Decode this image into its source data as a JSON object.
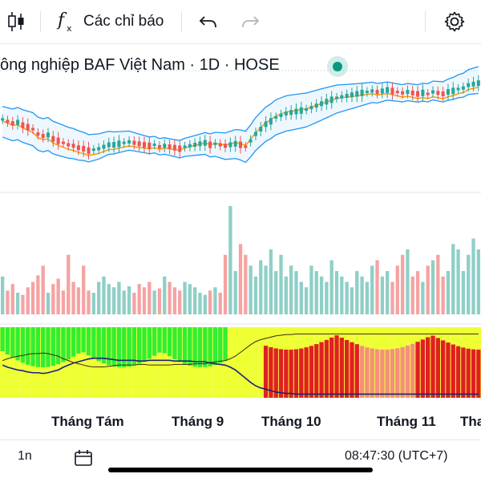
{
  "toolbar": {
    "candles_icon": "candlestick-icon",
    "indicators_label": "Các chỉ báo",
    "indicators_icon": "function-fx-icon",
    "undo_icon": "undo-arrow-icon",
    "redo_icon": "redo-arrow-icon",
    "settings_icon": "gear-icon"
  },
  "legend": {
    "text": "ông nghiệp BAF Việt Nam · 1D · HOSE"
  },
  "x_axis": {
    "labels": [
      "Tháng Tám",
      "Tháng 9",
      "Tháng 10",
      "Tháng 11",
      "Tha"
    ]
  },
  "bottom_bar": {
    "range_label": "1n",
    "time_text": "08:47:30 (UTC+7)",
    "calendar_icon": "calendar-icon"
  },
  "colors": {
    "up": "#26a69a",
    "down": "#ef5350",
    "bollinger": "#2196f3",
    "ma": "#ff9800",
    "volume_up": "#8fcfc7",
    "volume_down": "#f5a3a3",
    "osc_green": "#33ee33",
    "osc_yellow": "#eeff33",
    "osc_red": "#e02020",
    "osc_salmon": "#f5907a",
    "osc_line": "#1a237e"
  },
  "chart_data": {
    "type": "candlestick",
    "symbol_partial": "BAF",
    "interval": "1D",
    "exchange": "HOSE",
    "months": [
      "Tháng Tám",
      "Tháng 9",
      "Tháng 10",
      "Tháng 11"
    ],
    "price_trend": [
      0.4,
      0.42,
      0.44,
      0.43,
      0.46,
      0.48,
      0.5,
      0.55,
      0.57,
      0.56,
      0.6,
      0.62,
      0.64,
      0.66,
      0.67,
      0.69,
      0.7,
      0.72,
      0.71,
      0.7,
      0.68,
      0.66,
      0.66,
      0.65,
      0.64,
      0.63,
      0.64,
      0.65,
      0.66,
      0.67,
      0.66,
      0.68,
      0.67,
      0.68,
      0.69,
      0.7,
      0.68,
      0.67,
      0.66,
      0.65,
      0.64,
      0.66,
      0.65,
      0.66,
      0.67,
      0.66,
      0.65,
      0.66,
      0.68,
      0.62,
      0.55,
      0.5,
      0.45,
      0.42,
      0.38,
      0.36,
      0.34,
      0.33,
      0.32,
      0.31,
      0.3,
      0.28,
      0.26,
      0.24,
      0.22,
      0.2,
      0.18,
      0.17,
      0.16,
      0.15,
      0.14,
      0.13,
      0.12,
      0.11,
      0.12,
      0.11,
      0.1,
      0.11,
      0.12,
      0.13,
      0.12,
      0.13,
      0.14,
      0.13,
      0.14,
      0.12,
      0.13,
      0.14,
      0.12,
      0.11,
      0.09,
      0.08,
      0.05,
      0.04,
      0.03
    ],
    "volume": [
      0.35,
      0.22,
      0.28,
      0.2,
      0.18,
      0.25,
      0.3,
      0.36,
      0.45,
      0.2,
      0.28,
      0.33,
      0.22,
      0.55,
      0.3,
      0.25,
      0.45,
      0.22,
      0.2,
      0.3,
      0.35,
      0.28,
      0.25,
      0.3,
      0.22,
      0.26,
      0.2,
      0.28,
      0.25,
      0.3,
      0.22,
      0.24,
      0.35,
      0.3,
      0.25,
      0.22,
      0.3,
      0.28,
      0.25,
      0.2,
      0.18,
      0.22,
      0.25,
      0.2,
      0.55,
      1.0,
      0.4,
      0.65,
      0.55,
      0.45,
      0.35,
      0.5,
      0.45,
      0.6,
      0.4,
      0.55,
      0.35,
      0.45,
      0.4,
      0.3,
      0.25,
      0.45,
      0.4,
      0.35,
      0.3,
      0.5,
      0.4,
      0.35,
      0.3,
      0.25,
      0.4,
      0.35,
      0.3,
      0.45,
      0.5,
      0.35,
      0.4,
      0.3,
      0.45,
      0.55,
      0.6,
      0.35,
      0.4,
      0.3,
      0.45,
      0.5,
      0.55,
      0.35,
      0.4,
      0.65,
      0.6,
      0.4,
      0.55,
      0.7,
      0.6
    ],
    "oscillator_state": [
      "g",
      "g",
      "g",
      "g",
      "g",
      "g",
      "g",
      "g",
      "g",
      "g",
      "g",
      "g",
      "g",
      "g",
      "g",
      "g",
      "g",
      "g",
      "g",
      "g",
      "g",
      "g",
      "g",
      "g",
      "g",
      "g",
      "g",
      "g",
      "g",
      "g",
      "g",
      "g",
      "g",
      "g",
      "g",
      "g",
      "g",
      "g",
      "g",
      "g",
      "g",
      "g",
      "g",
      "g",
      "g",
      "y",
      "y",
      "y",
      "y",
      "y",
      "y",
      "y",
      "r",
      "r",
      "r",
      "r",
      "r",
      "r",
      "r",
      "r",
      "r",
      "r",
      "r",
      "r",
      "r",
      "r",
      "r",
      "r",
      "r",
      "r",
      "r",
      "s",
      "s",
      "s",
      "s",
      "s",
      "s",
      "s",
      "s",
      "s",
      "s",
      "s",
      "r",
      "r",
      "r",
      "r",
      "r",
      "r",
      "r",
      "r",
      "r",
      "r",
      "r",
      "r",
      "r"
    ],
    "oscillator_line": [
      0.55,
      0.58,
      0.6,
      0.62,
      0.63,
      0.65,
      0.66,
      0.66,
      0.67,
      0.66,
      0.64,
      0.62,
      0.58,
      0.55,
      0.52,
      0.5,
      0.48,
      0.46,
      0.45,
      0.45,
      0.45,
      0.46,
      0.47,
      0.48,
      0.48,
      0.48,
      0.48,
      0.49,
      0.49,
      0.48,
      0.48,
      0.48,
      0.48,
      0.48,
      0.49,
      0.49,
      0.49,
      0.49,
      0.5,
      0.5,
      0.5,
      0.52,
      0.53,
      0.54,
      0.55,
      0.58,
      0.62,
      0.68,
      0.74,
      0.8,
      0.85,
      0.88,
      0.9,
      0.92,
      0.94,
      0.95,
      0.96,
      0.96,
      0.97,
      0.97,
      0.97,
      0.97,
      0.97,
      0.97,
      0.97,
      0.97,
      0.97,
      0.97,
      0.97,
      0.97,
      0.97,
      0.97,
      0.97,
      0.97,
      0.97,
      0.97,
      0.97,
      0.97,
      0.97,
      0.97,
      0.97,
      0.97,
      0.97,
      0.97,
      0.97,
      0.97,
      0.97,
      0.97,
      0.97,
      0.97,
      0.97,
      0.97,
      0.97,
      0.97,
      0.97
    ]
  }
}
